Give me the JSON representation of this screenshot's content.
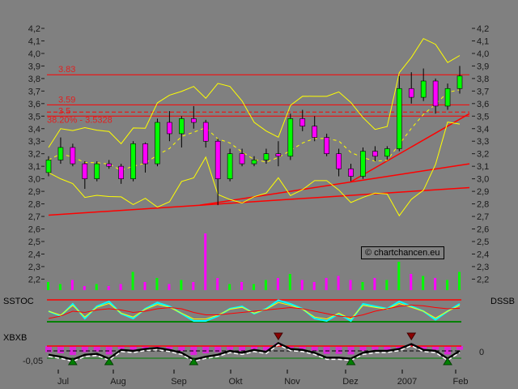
{
  "chart_data": {
    "type": "candlestick",
    "y_ticks": [
      "4,2",
      "4,1",
      "4,0",
      "3,9",
      "3,8",
      "3,7",
      "3,6",
      "3,5",
      "3,4",
      "3,3",
      "3,2",
      "3,1",
      "3,0",
      "2,9",
      "2,8",
      "2,7",
      "2,6",
      "2,5",
      "2,4",
      "2,3",
      "2,2"
    ],
    "ylim": [
      2.2,
      4.2
    ],
    "x_labels": [
      "Jul",
      "Aug",
      "Sep",
      "Okt",
      "Nov",
      "Dez",
      "2007",
      "Feb"
    ],
    "levels": [
      {
        "label": "3.83",
        "value": 3.83,
        "style": "solid"
      },
      {
        "label": "3.59",
        "value": 3.59,
        "style": "solid"
      },
      {
        "label": "3.5",
        "value": 3.5,
        "style": "solid"
      },
      {
        "label": "38.20% - 3.5328",
        "value": 3.5328,
        "style": "dashed"
      }
    ],
    "ohlc": [
      [
        3.05,
        3.18,
        3.02,
        3.15
      ],
      [
        3.15,
        3.33,
        3.12,
        3.25
      ],
      [
        3.25,
        3.28,
        3.1,
        3.12
      ],
      [
        3.12,
        3.14,
        2.92,
        3.0
      ],
      [
        3.0,
        3.14,
        2.98,
        3.12
      ],
      [
        3.12,
        3.15,
        3.08,
        3.1
      ],
      [
        3.1,
        3.12,
        2.96,
        3.0
      ],
      [
        3.0,
        3.3,
        2.98,
        3.28
      ],
      [
        3.28,
        3.29,
        3.05,
        3.12
      ],
      [
        3.12,
        3.48,
        3.1,
        3.45
      ],
      [
        3.45,
        3.54,
        3.3,
        3.36
      ],
      [
        3.36,
        3.5,
        3.25,
        3.48
      ],
      [
        3.48,
        3.58,
        3.4,
        3.45
      ],
      [
        3.45,
        3.47,
        3.25,
        3.3
      ],
      [
        3.3,
        3.32,
        2.79,
        3.0
      ],
      [
        3.0,
        3.24,
        2.98,
        3.2
      ],
      [
        3.2,
        3.24,
        3.1,
        3.12
      ],
      [
        3.12,
        3.18,
        3.1,
        3.15
      ],
      [
        3.15,
        3.24,
        3.12,
        3.2
      ],
      [
        3.2,
        3.3,
        3.1,
        3.18
      ],
      [
        3.18,
        3.52,
        3.15,
        3.48
      ],
      [
        3.48,
        3.55,
        3.38,
        3.42
      ],
      [
        3.42,
        3.5,
        3.3,
        3.33
      ],
      [
        3.33,
        3.36,
        3.18,
        3.2
      ],
      [
        3.2,
        3.24,
        3.02,
        3.08
      ],
      [
        3.08,
        3.12,
        2.98,
        3.02
      ],
      [
        3.02,
        3.25,
        3.0,
        3.22
      ],
      [
        3.22,
        3.26,
        3.14,
        3.18
      ],
      [
        3.18,
        3.26,
        3.15,
        3.24
      ],
      [
        3.24,
        3.82,
        3.22,
        3.72
      ],
      [
        3.72,
        3.85,
        3.6,
        3.65
      ],
      [
        3.65,
        3.88,
        3.62,
        3.78
      ],
      [
        3.78,
        3.8,
        3.52,
        3.58
      ],
      [
        3.58,
        3.76,
        3.55,
        3.72
      ],
      [
        3.72,
        3.9,
        3.68,
        3.82
      ]
    ],
    "trendlines": [
      {
        "from": [
          0,
          2.71
        ],
        "to": [
          1,
          2.93
        ]
      },
      {
        "from": [
          0.36,
          2.79
        ],
        "to": [
          1,
          3.12
        ]
      },
      {
        "from": [
          0.72,
          2.98
        ],
        "to": [
          1,
          3.52
        ]
      }
    ],
    "volume": [
      4,
      3,
      5,
      2,
      3,
      2,
      3,
      9,
      4,
      6,
      3,
      5,
      4,
      28,
      6,
      3,
      4,
      3,
      5,
      6,
      8,
      5,
      4,
      6,
      7,
      5,
      4,
      6,
      5,
      14,
      8,
      7,
      6,
      5,
      9
    ],
    "indicators": {
      "sstoc_label": "SSTOC",
      "dssb_label": "DSSB",
      "xbxb_label": "XBXB",
      "xbxb_left_tick": "-0,05",
      "xbxb_right_tick": "0",
      "sstoc_fast": [
        50,
        30,
        80,
        20,
        70,
        90,
        40,
        20,
        60,
        85,
        70,
        40,
        10,
        10,
        30,
        60,
        70,
        40,
        60,
        95,
        80,
        60,
        20,
        10,
        40,
        10,
        80,
        70,
        60,
        90,
        70,
        50,
        15,
        50,
        80
      ],
      "sstoc_slow": [
        20,
        30,
        50,
        45,
        55,
        60,
        55,
        45,
        50,
        60,
        65,
        60,
        45,
        35,
        35,
        40,
        45,
        50,
        55,
        60,
        65,
        60,
        50,
        40,
        30,
        25,
        35,
        50,
        60,
        70,
        75,
        72,
        65,
        60,
        62
      ],
      "xbxb": [
        -0.02,
        -0.03,
        -0.045,
        -0.02,
        -0.015,
        -0.04,
        0.005,
        0,
        0.01,
        0.015,
        0.005,
        -0.01,
        -0.045,
        -0.03,
        -0.02,
        0,
        -0.01,
        0.005,
        -0.005,
        0.04,
        0.01,
        0.005,
        -0.01,
        -0.035,
        -0.035,
        -0.04,
        -0.01,
        0,
        0,
        0.01,
        0.035,
        0.005,
        0,
        -0.04,
        0
      ]
    },
    "colors": {
      "background": "#808080",
      "up": "#00ff00",
      "down": "#ff00ff",
      "bands": "#ffff00",
      "levels": "#ff0000",
      "stoch_fast": "#00ffff",
      "stoch_slow": "#ffff00",
      "signal_up": "#008000",
      "signal_down": "#8b0000"
    }
  },
  "watermark": "© chartchancen.eu"
}
